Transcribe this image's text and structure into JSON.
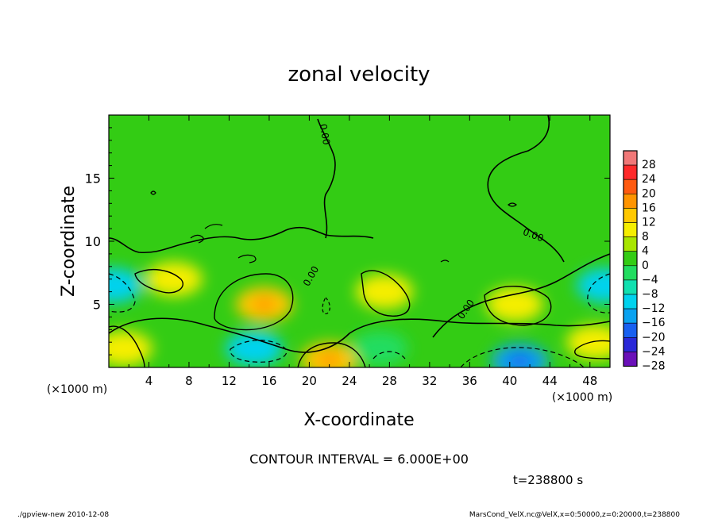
{
  "chart_data": {
    "type": "heatmap",
    "title": "zonal velocity",
    "xlabel": "X-coordinate",
    "ylabel": "Z-coordinate",
    "x_unit_label": "(×1000 m)",
    "y_unit_label": "(×1000 m)",
    "xlim": [
      0,
      50
    ],
    "ylim": [
      0,
      20
    ],
    "x_ticks": [
      4,
      8,
      12,
      16,
      20,
      24,
      28,
      32,
      36,
      40,
      44,
      48
    ],
    "y_ticks": [
      5,
      10,
      15
    ],
    "colorbar": {
      "levels": [
        -28,
        -24,
        -20,
        -16,
        -12,
        -8,
        -4,
        0,
        4,
        8,
        12,
        16,
        20,
        24,
        28
      ],
      "labels": [
        "28",
        "24",
        "20",
        "16",
        "12",
        "8",
        "4",
        "0",
        "−4",
        "−8",
        "−12",
        "−16",
        "−20",
        "−24",
        "−28"
      ],
      "colors": [
        "#f07878",
        "#ff2a2a",
        "#ff5a10",
        "#ff9400",
        "#ffc800",
        "#f5ee00",
        "#a8e600",
        "#33cc14",
        "#22dd60",
        "#11e0b0",
        "#00d2ee",
        "#0aa2f0",
        "#1860f0",
        "#2a28d8",
        "#6a10b8"
      ]
    },
    "contour_labels": [
      "0.00",
      "0.00",
      "0.00",
      "0.00"
    ],
    "contour_interval": "CONTOUR INTERVAL = 6.000E+00",
    "time_label": "t=238800 s",
    "features": [
      {
        "x": 6.5,
        "z": 7.0,
        "u": 9
      },
      {
        "x": 15.5,
        "z": 5.0,
        "u": 12
      },
      {
        "x": 27.5,
        "z": 6.0,
        "u": 10
      },
      {
        "x": 40.5,
        "z": 5.0,
        "u": 10
      },
      {
        "x": 48.5,
        "z": 2.0,
        "u": 10
      },
      {
        "x": 1.5,
        "z": 1.5,
        "u": 9
      },
      {
        "x": 22.0,
        "z": 0.6,
        "u": 14
      },
      {
        "x": 0.5,
        "z": 6.5,
        "u": -9
      },
      {
        "x": 49.5,
        "z": 6.5,
        "u": -9
      },
      {
        "x": 14.5,
        "z": 1.5,
        "u": -9
      },
      {
        "x": 41.0,
        "z": 0.5,
        "u": -16
      },
      {
        "x": 27.0,
        "z": 1.5,
        "u": -4
      }
    ]
  },
  "footer": {
    "left": "./gpview-new  2010-12-08",
    "right": "MarsCond_VelX.nc@VelX,x=0:50000,z=0:20000,t=238800"
  }
}
